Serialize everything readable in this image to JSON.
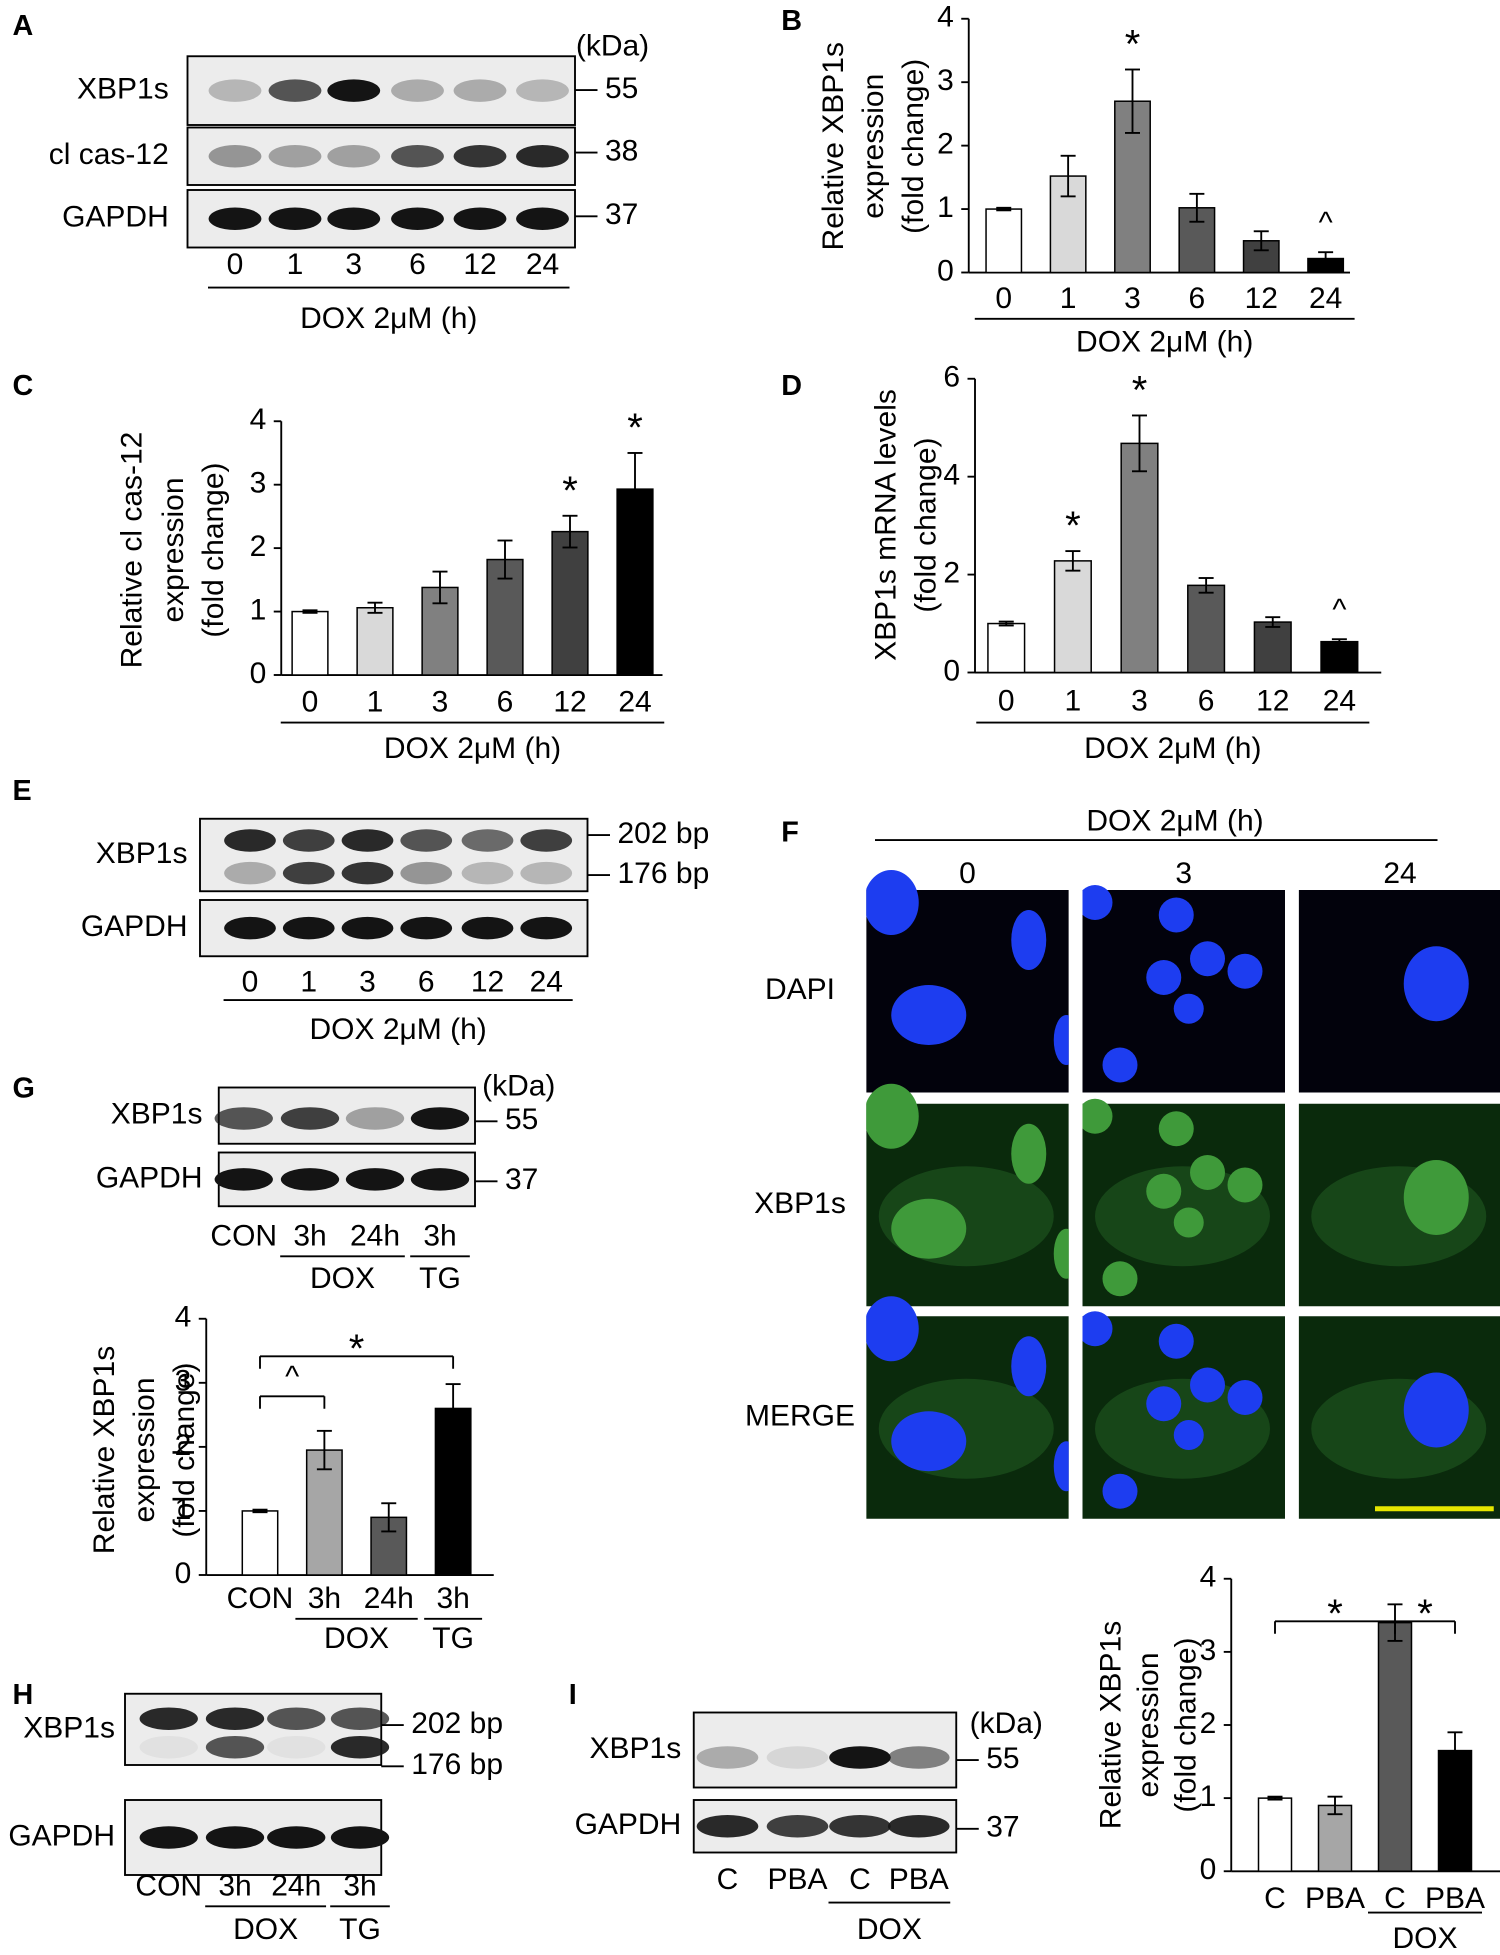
{
  "chart_data": [
    {
      "type": "bar",
      "panel": "B",
      "ylabel": [
        "Relative XBP1s",
        "expression",
        "(fold change)"
      ],
      "categories": [
        "0",
        "1",
        "3",
        "6",
        "12",
        "24"
      ],
      "values": [
        1,
        1.52,
        2.7,
        1.02,
        0.5,
        0.22
      ],
      "errors": [
        0.02,
        0.32,
        0.5,
        0.22,
        0.15,
        0.1
      ],
      "colors": [
        "#ffffff",
        "#d9d9d9",
        "#808080",
        "#595959",
        "#404040",
        "#000000"
      ],
      "ylim": [
        0,
        4
      ],
      "yticks": [
        0,
        1,
        2,
        3,
        4
      ],
      "groups": [
        {
          "label": "DOX 2μM (h)",
          "from": 0,
          "to": 5
        }
      ],
      "annotations": [
        {
          "text": "*",
          "index": 2
        },
        {
          "text": "^",
          "index": 5
        }
      ]
    },
    {
      "type": "bar",
      "panel": "C",
      "ylabel": [
        "Relative cl cas-12",
        "expression",
        "(fold change)"
      ],
      "categories": [
        "0",
        "1",
        "3",
        "6",
        "12",
        "24"
      ],
      "values": [
        1,
        1.06,
        1.38,
        1.82,
        2.26,
        2.93
      ],
      "errors": [
        0.02,
        0.08,
        0.25,
        0.3,
        0.25,
        0.57
      ],
      "colors": [
        "#ffffff",
        "#d9d9d9",
        "#808080",
        "#595959",
        "#404040",
        "#000000"
      ],
      "ylim": [
        0,
        4
      ],
      "yticks": [
        0,
        1,
        2,
        3,
        4
      ],
      "groups": [
        {
          "label": "DOX 2μM (h)",
          "from": 0,
          "to": 5
        }
      ],
      "annotations": [
        {
          "text": "*",
          "index": 4
        },
        {
          "text": "*",
          "index": 5
        }
      ]
    },
    {
      "type": "bar",
      "panel": "D",
      "ylabel": [
        "XBP1s mRNA levels",
        "(fold change)"
      ],
      "categories": [
        "0",
        "1",
        "3",
        "6",
        "12",
        "24"
      ],
      "values": [
        1,
        2.28,
        4.68,
        1.78,
        1.03,
        0.63
      ],
      "errors": [
        0.04,
        0.2,
        0.57,
        0.15,
        0.1,
        0.05
      ],
      "colors": [
        "#ffffff",
        "#d9d9d9",
        "#808080",
        "#595959",
        "#404040",
        "#000000"
      ],
      "ylim": [
        0,
        6
      ],
      "yticks": [
        0,
        2,
        4,
        6
      ],
      "groups": [
        {
          "label": "DOX 2μM (h)",
          "from": 0,
          "to": 5
        }
      ],
      "annotations": [
        {
          "text": "*",
          "index": 1
        },
        {
          "text": "*",
          "index": 2
        },
        {
          "text": "^",
          "index": 5
        }
      ]
    },
    {
      "type": "bar",
      "panel": "G",
      "ylabel": [
        "Relative XBP1s",
        "expression",
        "(fold change)"
      ],
      "categories": [
        "CON",
        "3h",
        "24h",
        "3h"
      ],
      "values": [
        1,
        1.95,
        0.9,
        2.6
      ],
      "errors": [
        0.02,
        0.3,
        0.22,
        0.38
      ],
      "colors": [
        "#ffffff",
        "#a6a6a6",
        "#595959",
        "#000000"
      ],
      "ylim": [
        0,
        4
      ],
      "yticks": [
        0,
        1,
        2,
        3,
        4
      ],
      "groups": [
        {
          "label": "DOX",
          "from": 1,
          "to": 2
        },
        {
          "label": "TG",
          "from": 3,
          "to": 3
        }
      ],
      "brackets": [
        {
          "text": "^",
          "from": 0,
          "to": 1
        },
        {
          "text": "*",
          "from": 0,
          "to": 3
        }
      ]
    },
    {
      "type": "bar",
      "panel": "I",
      "ylabel": [
        "Relative XBP1s",
        "expression",
        "(fold change)"
      ],
      "categories": [
        "C",
        "PBA",
        "C",
        "PBA"
      ],
      "values": [
        1,
        0.9,
        3.4,
        1.65
      ],
      "errors": [
        0.02,
        0.12,
        0.25,
        0.25
      ],
      "colors": [
        "#ffffff",
        "#a6a6a6",
        "#595959",
        "#000000"
      ],
      "ylim": [
        0,
        4
      ],
      "yticks": [
        0,
        1,
        2,
        3,
        4
      ],
      "groups": [
        {
          "label": "DOX",
          "from": 2,
          "to": 3
        }
      ],
      "brackets": [
        {
          "text": "*",
          "from": 0,
          "to": 2
        },
        {
          "text": "*",
          "from": 2,
          "to": 3
        }
      ]
    }
  ],
  "blots": [
    {
      "panel": "A",
      "unit": "(kDa)",
      "rows": [
        {
          "label": "XBP1s",
          "markers": [
            "55"
          ]
        },
        {
          "label": "cl cas-12",
          "markers": [
            "38"
          ]
        },
        {
          "label": "GAPDH",
          "markers": [
            "37"
          ]
        }
      ],
      "lanes": [
        "0",
        "1",
        "3",
        "6",
        "12",
        "24"
      ],
      "groups": [
        {
          "label": "DOX  2μM (h)",
          "from": 0,
          "to": 5
        }
      ]
    },
    {
      "panel": "E",
      "rows": [
        {
          "label": "XBP1s",
          "markers": [
            "202 bp",
            "176 bp"
          ]
        },
        {
          "label": "GAPDH"
        }
      ],
      "lanes": [
        "0",
        "1",
        "3",
        "6",
        "12",
        "24"
      ],
      "groups": [
        {
          "label": "DOX  2μM (h)",
          "from": 0,
          "to": 5
        }
      ]
    },
    {
      "panel": "G",
      "unit": "(kDa)",
      "rows": [
        {
          "label": "XBP1s",
          "markers": [
            "55"
          ]
        },
        {
          "label": "GAPDH",
          "markers": [
            "37"
          ]
        }
      ],
      "lanes": [
        "CON",
        "3h",
        "24h",
        "3h"
      ],
      "groups": [
        {
          "label": "DOX",
          "from": 1,
          "to": 2
        },
        {
          "label": "TG",
          "from": 3,
          "to": 3
        }
      ]
    },
    {
      "panel": "H",
      "rows": [
        {
          "label": "XBP1s",
          "markers": [
            "202 bp",
            "176 bp"
          ]
        },
        {
          "label": "GAPDH"
        }
      ],
      "lanes": [
        "CON",
        "3h",
        "24h",
        "3h"
      ],
      "groups": [
        {
          "label": "DOX",
          "from": 1,
          "to": 2
        },
        {
          "label": "TG",
          "from": 3,
          "to": 3
        }
      ]
    },
    {
      "panel": "I",
      "unit": "(kDa)",
      "rows": [
        {
          "label": "XBP1s",
          "markers": [
            "55"
          ]
        },
        {
          "label": "GAPDH",
          "markers": [
            "37"
          ]
        }
      ],
      "lanes": [
        "C",
        "PBA",
        "C",
        "PBA"
      ],
      "groups": [
        {
          "label": "DOX",
          "from": 2,
          "to": 3
        }
      ]
    }
  ],
  "micrographs": {
    "panel": "F",
    "header": "DOX 2μM (h)",
    "columns": [
      "0",
      "3",
      "24"
    ],
    "rows": [
      "DAPI",
      "XBP1s",
      "MERGE"
    ]
  }
}
